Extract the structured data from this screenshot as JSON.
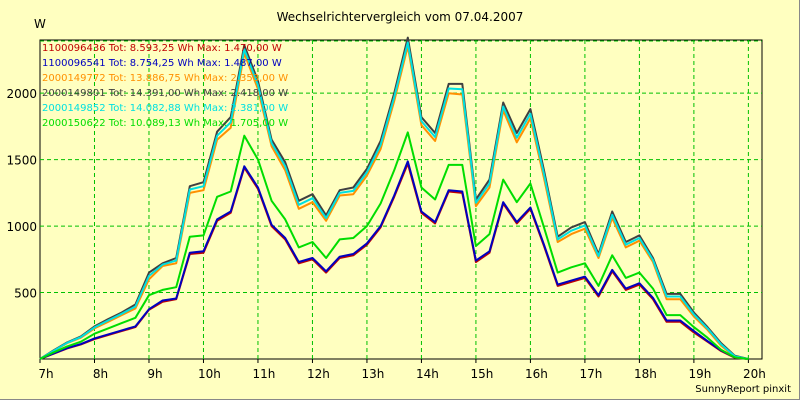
{
  "chart_data": {
    "type": "line",
    "title": "Wechselrichtervergleich vom 07.04.2007",
    "ylabel": "W",
    "footer": "SunnyReport pinxit",
    "x_ticks": [
      "7h",
      "8h",
      "9h",
      "10h",
      "11h",
      "12h",
      "13h",
      "14h",
      "15h",
      "16h",
      "17h",
      "18h",
      "19h",
      "20h"
    ],
    "y_ticks": [
      "500",
      "1000",
      "1500",
      "2000"
    ],
    "y_tick_values": [
      500,
      1000,
      1500,
      2000
    ],
    "xlim": [
      7,
      20.25
    ],
    "ylim": [
      0,
      2400
    ],
    "grid": true,
    "legend_position": "top-left",
    "x": [
      7,
      7.25,
      7.5,
      7.75,
      8,
      8.25,
      8.5,
      8.75,
      9,
      9.25,
      9.5,
      9.75,
      10,
      10.25,
      10.5,
      10.75,
      11,
      11.25,
      11.5,
      11.75,
      12,
      12.25,
      12.5,
      12.75,
      13,
      13.25,
      13.5,
      13.75,
      14,
      14.25,
      14.5,
      14.75,
      15,
      15.25,
      15.5,
      15.75,
      16,
      16.25,
      16.5,
      16.75,
      17,
      17.25,
      17.5,
      17.75,
      18,
      18.25,
      18.5,
      18.75,
      19,
      19.25,
      19.5,
      19.75,
      20
    ],
    "series": [
      {
        "name": "1100096436",
        "legend": "1100096436  Tot: 8.593,25 Wh  Max: 1.470,00 W",
        "color": "#c00000",
        "values": [
          0,
          40,
          80,
          110,
          150,
          180,
          210,
          240,
          370,
          430,
          450,
          790,
          800,
          1040,
          1100,
          1440,
          1280,
          1000,
          900,
          720,
          750,
          650,
          760,
          780,
          860,
          990,
          1220,
          1470,
          1100,
          1020,
          1260,
          1250,
          730,
          800,
          1170,
          1020,
          1130,
          850,
          550,
          580,
          610,
          470,
          660,
          520,
          560,
          450,
          280,
          280,
          200,
          130,
          60,
          10,
          0
        ]
      },
      {
        "name": "1100096541",
        "legend": "1100096541  Tot: 8.754,25 Wh  Max: 1.487,00 W",
        "color": "#0000c0",
        "values": [
          0,
          42,
          82,
          112,
          155,
          185,
          215,
          245,
          375,
          440,
          455,
          800,
          810,
          1050,
          1110,
          1450,
          1290,
          1010,
          910,
          730,
          760,
          660,
          770,
          790,
          870,
          1000,
          1230,
          1487,
          1110,
          1030,
          1270,
          1260,
          740,
          810,
          1180,
          1030,
          1140,
          860,
          560,
          590,
          620,
          480,
          670,
          530,
          570,
          460,
          290,
          290,
          210,
          135,
          65,
          12,
          0
        ]
      },
      {
        "name": "2000149772",
        "legend": "2000149772  Tot: 13.886,75 Wh  Max: 2.353,00 W",
        "color": "#ff9000",
        "values": [
          0,
          60,
          120,
          160,
          230,
          280,
          330,
          380,
          600,
          700,
          720,
          1250,
          1270,
          1650,
          1740,
          2300,
          2030,
          1600,
          1420,
          1130,
          1180,
          1040,
          1230,
          1240,
          1380,
          1580,
          1940,
          2353,
          1760,
          1640,
          2000,
          1990,
          1150,
          1290,
          1870,
          1630,
          1810,
          1360,
          880,
          940,
          980,
          760,
          1060,
          840,
          890,
          730,
          450,
          450,
          320,
          220,
          100,
          18,
          0
        ]
      },
      {
        "name": "2000149801",
        "legend": "2000149801  Tot: 14.391,00 Wh  Max: 2.418,00 W",
        "color": "#404040",
        "values": [
          0,
          65,
          125,
          170,
          245,
          300,
          350,
          410,
          650,
          720,
          760,
          1300,
          1330,
          1710,
          1820,
          2360,
          2090,
          1650,
          1480,
          1190,
          1240,
          1080,
          1270,
          1290,
          1430,
          1640,
          2000,
          2418,
          1820,
          1700,
          2070,
          2070,
          1200,
          1350,
          1930,
          1700,
          1880,
          1420,
          920,
          990,
          1030,
          790,
          1110,
          880,
          930,
          760,
          490,
          490,
          350,
          240,
          120,
          25,
          0
        ]
      },
      {
        "name": "2000149852",
        "legend": "2000149852  Tot: 14.082,88 Wh  Max: 2.381,00 W",
        "color": "#00e0e0",
        "values": [
          0,
          62,
          122,
          165,
          238,
          290,
          340,
          395,
          625,
          710,
          740,
          1275,
          1300,
          1680,
          1780,
          2330,
          2060,
          1625,
          1450,
          1160,
          1210,
          1060,
          1250,
          1265,
          1405,
          1610,
          1970,
          2381,
          1790,
          1670,
          2035,
          2030,
          1175,
          1320,
          1900,
          1665,
          1845,
          1390,
          900,
          965,
          1005,
          775,
          1085,
          860,
          910,
          745,
          470,
          470,
          335,
          230,
          110,
          20,
          0
        ]
      },
      {
        "name": "2000150622",
        "legend": "2000150622  Tot: 10.089,13 Wh  Max: 1.705,00 W",
        "color": "#00dd00",
        "values": [
          0,
          50,
          95,
          130,
          190,
          230,
          270,
          310,
          480,
          520,
          540,
          920,
          930,
          1220,
          1260,
          1680,
          1500,
          1190,
          1050,
          840,
          880,
          760,
          900,
          910,
          1000,
          1170,
          1420,
          1705,
          1290,
          1200,
          1460,
          1460,
          850,
          940,
          1350,
          1180,
          1320,
          990,
          650,
          690,
          720,
          550,
          780,
          610,
          650,
          530,
          330,
          330,
          240,
          160,
          70,
          12,
          0
        ]
      }
    ]
  }
}
